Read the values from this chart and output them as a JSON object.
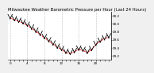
{
  "title": "Milwaukee Weather Barometric Pressure per Hour (Last 24 Hours)",
  "x_values": [
    0,
    1,
    2,
    3,
    4,
    5,
    6,
    7,
    8,
    9,
    10,
    11,
    12,
    13,
    14,
    15,
    16,
    17,
    18,
    19,
    20,
    21,
    22,
    23
  ],
  "y_values": [
    30.15,
    30.1,
    30.06,
    30.02,
    29.96,
    29.89,
    29.81,
    29.73,
    29.65,
    29.57,
    29.49,
    29.41,
    29.35,
    29.28,
    29.25,
    29.3,
    29.36,
    29.33,
    29.28,
    29.35,
    29.48,
    29.56,
    29.62,
    29.67
  ],
  "line_color": "#ff0000",
  "marker_color": "#000000",
  "bg_color": "#f0f0f0",
  "plot_bg_color": "#ffffff",
  "ylim": [
    29.1,
    30.3
  ],
  "ytick_values": [
    29.2,
    29.4,
    29.6,
    29.8,
    30.0,
    30.2
  ],
  "ytick_labels": [
    "29.2",
    "29.4",
    "29.6",
    "29.8",
    "30.0",
    "30.2"
  ],
  "grid_color": "#888888",
  "grid_positions": [
    0,
    4,
    8,
    12,
    16,
    20
  ],
  "title_fontsize": 3.8,
  "tick_fontsize": 3.0,
  "line_width": 0.7,
  "marker_size": 2.0
}
